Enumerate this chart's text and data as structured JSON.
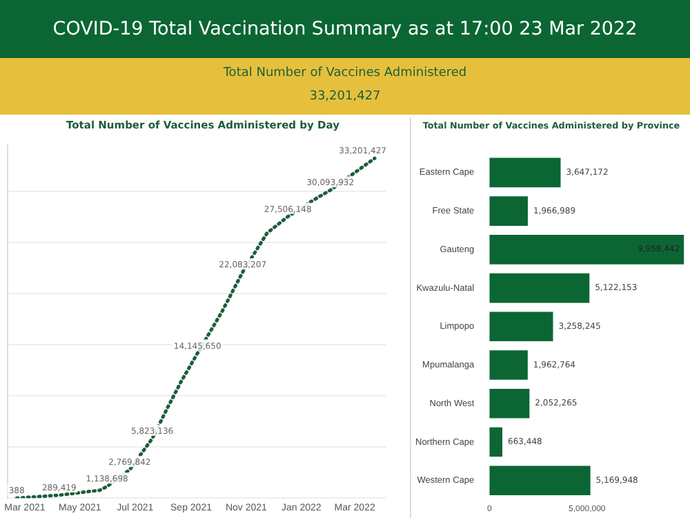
{
  "chart_data": [
    {
      "type": "other",
      "title": "COVID-19 Total Vaccination Summary as at 17:00 23 Mar 2022",
      "annotations": [
        "Total Number of Vaccines Administered",
        "33,201,427"
      ]
    },
    {
      "type": "line",
      "title": "Total Number of Vaccines Administered by Day",
      "color": "#1d5e3a",
      "line_style": "dotted",
      "marker": "none",
      "grid": "y",
      "tick_labels": "x",
      "x": [
        "2021-02-20",
        "2021-04-08",
        "2021-05-23",
        "2021-05-31",
        "2021-06-25",
        "2021-07-20",
        "2021-08-06",
        "2021-08-21",
        "2021-09-08",
        "2021-10-05",
        "2021-10-28",
        "2021-11-24",
        "2021-12-17",
        "2022-01-13",
        "2022-02-02",
        "2022-03-23"
      ],
      "values": [
        388,
        289419,
        770000,
        1138698,
        2769842,
        5823136,
        8850000,
        11400000,
        14145650,
        18200000,
        22083207,
        25900000,
        27506148,
        29050000,
        30093932,
        33201427
      ],
      "value_labels": [
        "388",
        "289,419",
        null,
        "1,138,698",
        "2,769,842",
        "5,823,136",
        null,
        null,
        "14,145,650",
        null,
        "22,083,207",
        null,
        "27,506,148",
        null,
        "30,093,932",
        "33,201,427"
      ],
      "xlim": [
        "2021-02-10",
        "2022-04-05"
      ],
      "xticks": [
        {
          "value": "2021-03-01",
          "label": "Mar 2021"
        },
        {
          "value": "2021-05-01",
          "label": "May 2021"
        },
        {
          "value": "2021-07-01",
          "label": "Jul 2021"
        },
        {
          "value": "2021-09-01",
          "label": "Sep 2021"
        },
        {
          "value": "2021-11-01",
          "label": "Nov 2021"
        },
        {
          "value": "2022-01-01",
          "label": "Jan 2022"
        },
        {
          "value": "2022-03-01",
          "label": "Mar 2022"
        }
      ],
      "ylim": [
        0,
        34500000
      ],
      "yticks": [
        {
          "value": 0,
          "label": null
        },
        {
          "value": 5000000,
          "label": null
        },
        {
          "value": 10000000,
          "label": null
        },
        {
          "value": 15000000,
          "label": null
        },
        {
          "value": 20000000,
          "label": null
        },
        {
          "value": 25000000,
          "label": null
        },
        {
          "value": 30000000,
          "label": null
        }
      ]
    },
    {
      "type": "bar",
      "orientation": "horizontal",
      "title": "Total Number of Vaccines Administered by Province",
      "color": "#0b6634",
      "categories": [
        "Eastern Cape",
        "Free State",
        "Gauteng",
        "Kwazulu-Natal",
        "Limpopo",
        "Mpumalanga",
        "North West",
        "Northern Cape",
        "Western Cape"
      ],
      "values": [
        3647172,
        1966989,
        9958442,
        5122153,
        3258245,
        1962764,
        2052265,
        663448,
        5169948
      ],
      "value_labels": [
        "3,647,172",
        "1,966,989",
        "9,958,442",
        "5,122,153",
        "3,258,245",
        "1,962,764",
        "2,052,265",
        "663,448",
        "5,169,948"
      ],
      "xlim": [
        0,
        10200000
      ],
      "xticks": [
        0,
        {
          "value": 5000000,
          "label": "5,000,000"
        }
      ]
    }
  ]
}
